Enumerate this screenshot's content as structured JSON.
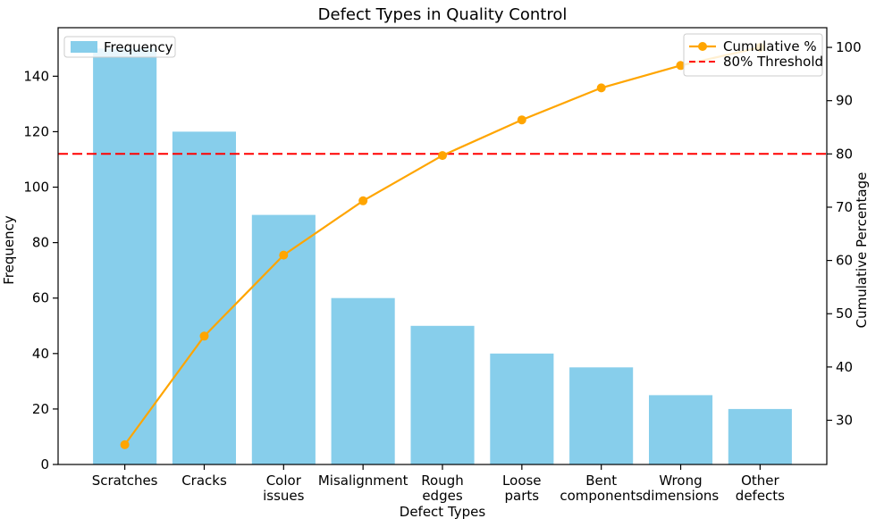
{
  "figure": {
    "background": "#ffffff",
    "frame_color": "#000000"
  },
  "chart_data": {
    "type": "bar",
    "subtype": "pareto-combo-bar-line",
    "title": "Defect Types in Quality Control",
    "xlabel": "Defect Types",
    "ylabel_left": "Frequency",
    "ylabel_right": "Cumulative Percentage",
    "categories": [
      "Scratches",
      "Cracks",
      "Color issues",
      "Misalignment",
      "Rough edges",
      "Loose parts",
      "Bent components",
      "Wrong dimensions",
      "Other defects"
    ],
    "category_tick_lines": [
      [
        "Scratches"
      ],
      [
        "Cracks"
      ],
      [
        "Color",
        "issues"
      ],
      [
        "Misalignment"
      ],
      [
        "Rough",
        "edges"
      ],
      [
        "Loose",
        "parts"
      ],
      [
        "Bent",
        "components"
      ],
      [
        "Wrong",
        "dimensions"
      ],
      [
        "Other",
        "defects"
      ]
    ],
    "series": [
      {
        "name": "Frequency",
        "type": "bar",
        "axis": "left",
        "color": "#87CEEB",
        "values": [
          150,
          120,
          90,
          60,
          50,
          40,
          35,
          25,
          20
        ]
      },
      {
        "name": "Cumulative %",
        "type": "line",
        "axis": "right",
        "color": "#FFA500",
        "marker": "circle",
        "values": [
          25.4,
          45.8,
          61.0,
          71.2,
          79.7,
          86.4,
          92.4,
          96.6,
          100.0
        ]
      }
    ],
    "threshold": {
      "label": "80% Threshold",
      "value": 80,
      "color": "#FF0000",
      "linestyle": "dashed",
      "axis": "right"
    },
    "axes": {
      "left": {
        "min": 0,
        "max": 157.5,
        "ticks": [
          0,
          20,
          40,
          60,
          80,
          100,
          120,
          140
        ]
      },
      "right": {
        "min": 21.7,
        "max": 103.7,
        "ticks": [
          30,
          40,
          50,
          60,
          70,
          80,
          90,
          100
        ]
      }
    },
    "grid": "off",
    "legend_left": {
      "position": "upper left",
      "entries": [
        {
          "label": "Frequency",
          "swatch": "bar",
          "color": "#87CEEB"
        }
      ]
    },
    "legend_right": {
      "position": "upper right",
      "entries": [
        {
          "label": "Cumulative %",
          "swatch": "line-marker",
          "color": "#FFA500"
        },
        {
          "label": "80% Threshold",
          "swatch": "dashed-line",
          "color": "#FF0000"
        }
      ]
    }
  }
}
